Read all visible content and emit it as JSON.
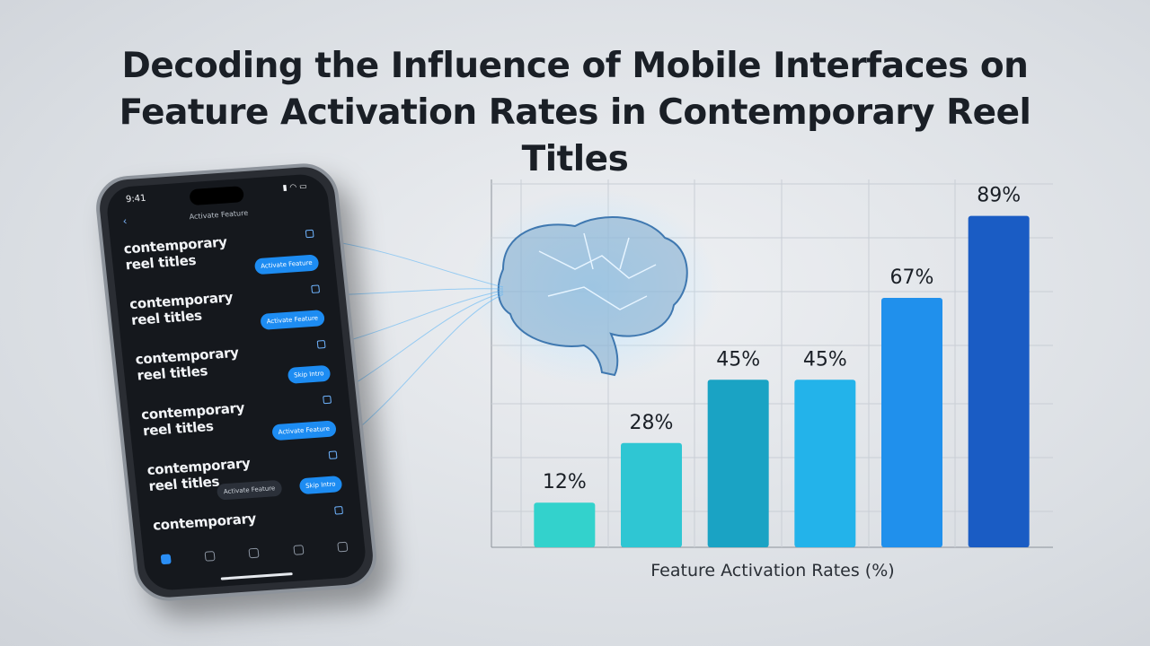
{
  "chart_data": {
    "type": "bar",
    "title": "Decoding the Influence of Mobile Interfaces on Feature Activation Rates in Contemporary Reel Titles",
    "x_label": "Feature Activation Rates (%)",
    "categories": [
      null,
      null,
      null,
      null,
      null,
      null
    ],
    "values": [
      12,
      28,
      45,
      45,
      67,
      89
    ],
    "value_labels": [
      "12%",
      "28%",
      "45%",
      "45%",
      "67%",
      "89%"
    ],
    "colors": [
      "#33d2cc",
      "#2fc6d3",
      "#1aa3c4",
      "#23b3ea",
      "#2090ec",
      "#1a5cc4"
    ],
    "ylim": [
      0,
      100
    ]
  },
  "phone": {
    "time": "9:41",
    "header": "Activate Feature",
    "items": [
      {
        "title": "contemporary reel titles",
        "buttons": [
          "Activate Feature"
        ]
      },
      {
        "title": "contemporary reel titles",
        "buttons": [
          "Activate Feature"
        ]
      },
      {
        "title": "contemporary reel titles",
        "buttons": [
          "Skip Intro"
        ]
      },
      {
        "title": "contemporary reel titles",
        "buttons": [
          "Activate Feature"
        ]
      },
      {
        "title": "contemporary reel titles",
        "buttons": [
          "Activate Feature",
          "Skip Intro"
        ]
      },
      {
        "title": "contemporary",
        "buttons": []
      }
    ]
  }
}
